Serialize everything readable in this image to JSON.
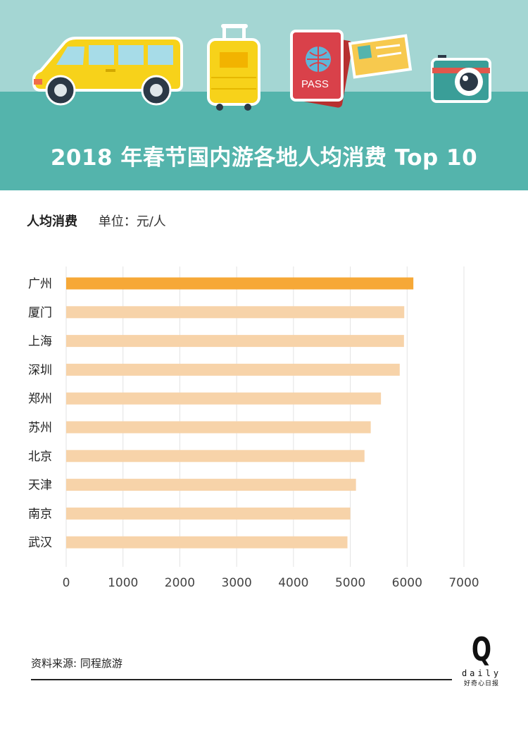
{
  "header": {
    "title": "2018 年春节国内游各地人均消费 Top 10",
    "passport_text": "PASS"
  },
  "subheader": {
    "measure": "人均消费",
    "unit": "单位：元/人"
  },
  "colors": {
    "highlight_bar": "#f6a837",
    "bar": "#f7d3a9",
    "header_band": "#54b4ac",
    "sky": "#a4d6d3"
  },
  "chart_data": {
    "type": "bar",
    "orientation": "horizontal",
    "categories": [
      "广州",
      "厦门",
      "上海",
      "深圳",
      "郑州",
      "苏州",
      "北京",
      "天津",
      "南京",
      "武汉"
    ],
    "values": [
      6110,
      5950,
      5945,
      5870,
      5540,
      5360,
      5250,
      5100,
      5000,
      4950
    ],
    "highlight_index": 0,
    "xlim": [
      0,
      7000
    ],
    "xticks": [
      "0",
      "1000",
      "2000",
      "3000",
      "4000",
      "5000",
      "6000",
      "7000"
    ],
    "title": "2018 年春节国内游各地人均消费 Top 10",
    "xlabel": "",
    "ylabel": "",
    "grid": true
  },
  "footer": {
    "source": "资料来源: 同程旅游",
    "logo_letter": "Q",
    "logo_word": "daily",
    "logo_sub": "好奇心日报"
  }
}
